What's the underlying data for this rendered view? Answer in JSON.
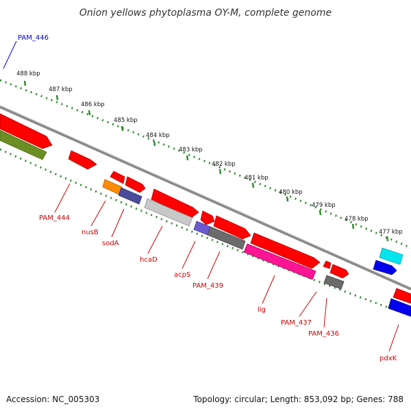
{
  "title": "Onion yellows phytoplasma OY-M, complete genome",
  "footer": {
    "accession": "Accession: NC_005303",
    "summary": "Topology: circular; Length: 853,092 bp; Genes: 788"
  },
  "scale_labels": [
    "488 kbp",
    "487 kbp",
    "486 kbp",
    "485 kbp",
    "484 kbp",
    "483 kbp",
    "482 kbp",
    "481 kbp",
    "480 kbp",
    "479 kbp",
    "478 kbp",
    "477 kbp"
  ],
  "gene_labels": [
    {
      "key": "pam446",
      "text": "PAM_446",
      "color": "#0000cc"
    },
    {
      "key": "pam444",
      "text": "PAM_444",
      "color": "#cc0000"
    },
    {
      "key": "nusB",
      "text": "nusB",
      "color": "#cc0000"
    },
    {
      "key": "sodA",
      "text": "sodA",
      "color": "#cc0000"
    },
    {
      "key": "hcaD",
      "text": "hcaD",
      "color": "#cc0000"
    },
    {
      "key": "acpS",
      "text": "acpS",
      "color": "#cc0000"
    },
    {
      "key": "pam439",
      "text": "PAM_439",
      "color": "#cc0000"
    },
    {
      "key": "lig",
      "text": "lig",
      "color": "#cc0000"
    },
    {
      "key": "pam437",
      "text": "PAM_437",
      "color": "#cc0000"
    },
    {
      "key": "pam436",
      "text": "PAM_436",
      "color": "#cc0000"
    },
    {
      "key": "pdxK",
      "text": "pdxK",
      "color": "#cc0000"
    }
  ],
  "colors": {
    "backbone": "#8a8a8a",
    "ticks": "#2e8b2e",
    "gene_red": "#ff0000",
    "gene_olive": "#6b8e23",
    "gene_orange": "#ff8c00",
    "gene_slate": "#4b4b9b",
    "gene_lightgray": "#c8c8c8",
    "gene_purple": "#6a5acd",
    "gene_darkgray": "#6b6b6b",
    "gene_pink": "#ff1493",
    "gene_cyan": "#00e5ee",
    "gene_blue": "#0000ee",
    "label_red": "#cc0000",
    "label_blue": "#0000cc"
  }
}
